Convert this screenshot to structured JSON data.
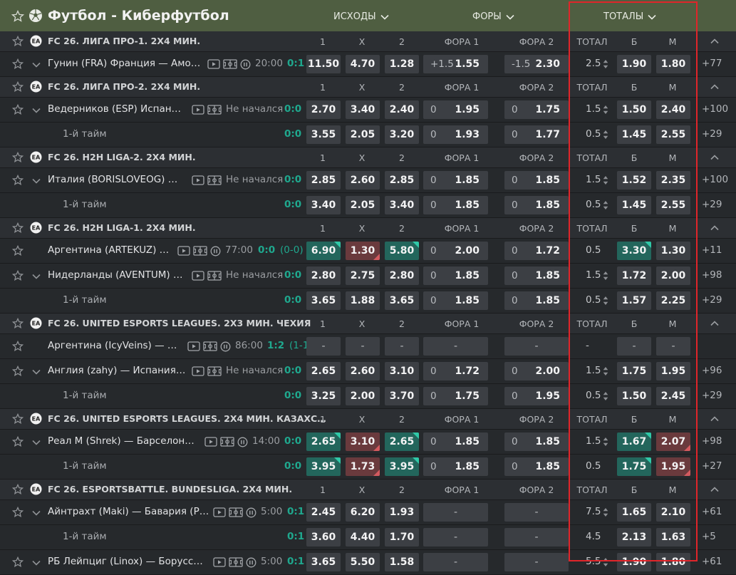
{
  "header": {
    "title": "Футбол - Киберфутбол",
    "tabs": [
      "ИСХОДЫ",
      "ФОРЫ",
      "ТОТАЛЫ"
    ]
  },
  "colors": {
    "accent": "#4f5e41",
    "score": "#1fa88e",
    "up": "#23665c",
    "down": "#6a3a3d",
    "highlight_box": "#e0252a"
  },
  "leagues": [
    {
      "name": "FC 26. ЛИГА ПРО-1. 2X4 МИН.",
      "cols": [
        "1",
        "X",
        "2",
        "ФОРА 1",
        "ФОРА 2",
        "ТОТАЛ",
        "Б",
        "М"
      ],
      "rows": [
        {
          "type": "match",
          "chev": true,
          "name": "Гунин (FRA) Франция — Амо…",
          "name_w": 218,
          "icons": [
            "video",
            "field",
            "pause"
          ],
          "status": "20:00",
          "score": "0:1",
          "score_x": 403,
          "o1": {
            "v": "11.50"
          },
          "ox": {
            "v": "4.70"
          },
          "o2": {
            "v": "1.28"
          },
          "f1": {
            "h": "+1.5",
            "v": "1.55"
          },
          "f2": {
            "h": "-1.5",
            "v": "2.30"
          },
          "total": "2.5",
          "tb": {
            "v": "1.90"
          },
          "tm": {
            "v": "1.80"
          },
          "arrows": true,
          "more": "+77"
        }
      ]
    },
    {
      "name": "FC 26. ЛИГА ПРО-2. 2X4 МИН.",
      "cols": [
        "1",
        "X",
        "2",
        "ФОРА 1",
        "ФОРА 2",
        "ТОТАЛ",
        "Б",
        "М"
      ],
      "rows": [
        {
          "type": "match",
          "chev": true,
          "name": "Ведерников (ESP) Испан…",
          "name_w": 196,
          "icons": [
            "video",
            "field"
          ],
          "status": "Не начался",
          "score": "0:0",
          "score_x": 399,
          "o1": {
            "v": "2.70"
          },
          "ox": {
            "v": "3.40"
          },
          "o2": {
            "v": "2.40"
          },
          "f1": {
            "h": "0",
            "v": "1.95"
          },
          "f2": {
            "h": "0",
            "v": "1.75"
          },
          "total": "1.5",
          "tb": {
            "v": "1.50"
          },
          "tm": {
            "v": "2.40"
          },
          "arrows": true,
          "more": "+100"
        },
        {
          "type": "half",
          "name": "1-й тайм",
          "score": "0:0",
          "score_x": 399,
          "o1": {
            "v": "3.55"
          },
          "ox": {
            "v": "2.05"
          },
          "o2": {
            "v": "3.20"
          },
          "f1": {
            "h": "0",
            "v": "1.93"
          },
          "f2": {
            "h": "0",
            "v": "1.77"
          },
          "total": "0.5",
          "tb": {
            "v": "1.45"
          },
          "tm": {
            "v": "2.55"
          },
          "arrows": true,
          "more": "+29"
        }
      ]
    },
    {
      "name": "FC 26. H2H LIGA-2. 2X4 МИН.",
      "cols": [
        "1",
        "X",
        "2",
        "ФОРА 1",
        "ФОРА 2",
        "ТОТАЛ",
        "Б",
        "М"
      ],
      "rows": [
        {
          "type": "match",
          "chev": true,
          "name": "Италия (BORISLOVEOG) …",
          "name_w": 196,
          "icons": [
            "video",
            "field"
          ],
          "status": "Не начался",
          "score": "0:0",
          "score_x": 399,
          "o1": {
            "v": "2.85"
          },
          "ox": {
            "v": "2.60"
          },
          "o2": {
            "v": "2.85"
          },
          "f1": {
            "h": "0",
            "v": "1.85"
          },
          "f2": {
            "h": "0",
            "v": "1.85"
          },
          "total": "1.5",
          "tb": {
            "v": "1.52"
          },
          "tm": {
            "v": "2.35"
          },
          "arrows": true,
          "more": "+100"
        },
        {
          "type": "half",
          "name": "1-й тайм",
          "score": "0:0",
          "score_x": 399,
          "o1": {
            "v": "3.40"
          },
          "ox": {
            "v": "2.05"
          },
          "o2": {
            "v": "3.40"
          },
          "f1": {
            "h": "0",
            "v": "1.85"
          },
          "f2": {
            "h": "0",
            "v": "1.85"
          },
          "total": "0.5",
          "tb": {
            "v": "1.45"
          },
          "tm": {
            "v": "2.55"
          },
          "arrows": true,
          "more": "+29"
        }
      ]
    },
    {
      "name": "FC 26. H2H LIGA-1. 2X4 МИН.",
      "cols": [
        "1",
        "X",
        "2",
        "ФОРА 1",
        "ФОРА 2",
        "ТОТАЛ",
        "Б",
        "М"
      ],
      "rows": [
        {
          "type": "match",
          "chev": false,
          "name": "Аргентина (ARTEKUZ) …",
          "name_w": 176,
          "icons": [
            "video",
            "field",
            "pause"
          ],
          "status": "77:00",
          "score": "0:0",
          "score_x": 362,
          "score_extra": "(0-0)",
          "o1": {
            "v": "6.90",
            "t": "up"
          },
          "ox": {
            "v": "1.30",
            "t": "down"
          },
          "o2": {
            "v": "5.80",
            "t": "up"
          },
          "f1": {
            "h": "0",
            "v": "2.00"
          },
          "f2": {
            "h": "0",
            "v": "1.72"
          },
          "total": "0.5",
          "tb": {
            "v": "3.30",
            "t": "up"
          },
          "tm": {
            "v": "1.30"
          },
          "arrows": false,
          "more": "+11"
        },
        {
          "type": "match",
          "chev": true,
          "name": "Нидерланды (AVENTUM) …",
          "name_w": 196,
          "icons": [
            "video",
            "field"
          ],
          "status": "Не начался",
          "score": "0:0",
          "score_x": 399,
          "o1": {
            "v": "2.80"
          },
          "ox": {
            "v": "2.75"
          },
          "o2": {
            "v": "2.80"
          },
          "f1": {
            "h": "0",
            "v": "1.85"
          },
          "f2": {
            "h": "0",
            "v": "1.85"
          },
          "total": "1.5",
          "tb": {
            "v": "1.72"
          },
          "tm": {
            "v": "2.00"
          },
          "arrows": true,
          "more": "+98"
        },
        {
          "type": "half",
          "name": "1-й тайм",
          "score": "0:0",
          "score_x": 399,
          "o1": {
            "v": "3.65"
          },
          "ox": {
            "v": "1.88"
          },
          "o2": {
            "v": "3.65"
          },
          "f1": {
            "h": "0",
            "v": "1.85"
          },
          "f2": {
            "h": "0",
            "v": "1.85"
          },
          "total": "0.5",
          "tb": {
            "v": "1.57"
          },
          "tm": {
            "v": "2.25"
          },
          "arrows": true,
          "more": "+29"
        }
      ]
    },
    {
      "name": "FC 26. UNITED ESPORTS LEAGUES. 2X3 МИН. ЧЕХИЯ",
      "cols": [
        "1",
        "X",
        "2",
        "ФОРА 1",
        "ФОРА 2",
        "ТОТАЛ",
        "Б",
        "М"
      ],
      "rows": [
        {
          "type": "match",
          "chev": false,
          "name": "Аргентина (IcyVeins) — …",
          "name_w": 190,
          "icons": [
            "video",
            "field",
            "pause"
          ],
          "status": "86:00",
          "score": "1:2",
          "score_x": 375,
          "score_extra": "(1-1)",
          "o1": {
            "v": "-",
            "t": "dash"
          },
          "ox": {
            "v": "-",
            "t": "dash"
          },
          "o2": {
            "v": "-",
            "t": "dash"
          },
          "f1": {
            "dash": true,
            "v": "-"
          },
          "f2": {
            "dash": true,
            "v": "-"
          },
          "total": "-",
          "tb": {
            "v": "-",
            "t": "dash"
          },
          "tm": {
            "v": "-",
            "t": "dash"
          },
          "arrows": false,
          "more": ""
        },
        {
          "type": "match",
          "chev": true,
          "name": "Англия (zahy) — Испания…",
          "name_w": 196,
          "icons": [
            "video",
            "field"
          ],
          "status": "Не начался",
          "score": "0:0",
          "score_x": 399,
          "o1": {
            "v": "2.65"
          },
          "ox": {
            "v": "2.60"
          },
          "o2": {
            "v": "3.10"
          },
          "f1": {
            "h": "0",
            "v": "1.72"
          },
          "f2": {
            "h": "0",
            "v": "2.00"
          },
          "total": "1.5",
          "tb": {
            "v": "1.75"
          },
          "tm": {
            "v": "1.95"
          },
          "arrows": true,
          "more": "+96"
        },
        {
          "type": "half",
          "name": "1-й тайм",
          "score": "0:0",
          "score_x": 399,
          "o1": {
            "v": "3.25"
          },
          "ox": {
            "v": "2.00"
          },
          "o2": {
            "v": "3.70"
          },
          "f1": {
            "h": "0",
            "v": "1.75"
          },
          "f2": {
            "h": "0",
            "v": "1.95"
          },
          "total": "0.5",
          "tb": {
            "v": "1.50"
          },
          "tm": {
            "v": "2.45"
          },
          "arrows": true,
          "more": "+29"
        }
      ]
    },
    {
      "name": "FC 26. UNITED ESPORTS LEAGUES. 2X4 МИН. КАЗАХС…",
      "cols": [
        "1",
        "X",
        "2",
        "ФОРА 1",
        "ФОРА 2",
        "ТОТАЛ",
        "Б",
        "М"
      ],
      "rows": [
        {
          "type": "match",
          "chev": true,
          "name": "Реал М (Shrek) — Барселон…",
          "name_w": 214,
          "icons": [
            "video",
            "field",
            "pause"
          ],
          "status": "14:00",
          "score": "0:0",
          "score_x": 399,
          "o1": {
            "v": "2.65",
            "t": "up"
          },
          "ox": {
            "v": "3.10",
            "t": "down"
          },
          "o2": {
            "v": "2.65",
            "t": "up"
          },
          "f1": {
            "h": "0",
            "v": "1.85"
          },
          "f2": {
            "h": "0",
            "v": "1.85"
          },
          "total": "1.5",
          "tb": {
            "v": "1.67",
            "t": "up"
          },
          "tm": {
            "v": "2.07",
            "t": "down"
          },
          "arrows": true,
          "more": "+98"
        },
        {
          "type": "half",
          "name": "1-й тайм",
          "score": "0:0",
          "score_x": 399,
          "o1": {
            "v": "3.95",
            "t": "up"
          },
          "ox": {
            "v": "1.73",
            "t": "down"
          },
          "o2": {
            "v": "3.95",
            "t": "up"
          },
          "f1": {
            "h": "0",
            "v": "1.85"
          },
          "f2": {
            "h": "0",
            "v": "1.85"
          },
          "total": "0.5",
          "tb": {
            "v": "1.75",
            "t": "up"
          },
          "tm": {
            "v": "1.95",
            "t": "down"
          },
          "arrows": false,
          "more": "+27"
        }
      ]
    },
    {
      "name": "FC 26. ESPORTSBATTLE. BUNDESLIGA. 2X4 МИН.",
      "cols": [
        "1",
        "X",
        "2",
        "ФОРА 1",
        "ФОРА 2",
        "ТОТАЛ",
        "Б",
        "М"
      ],
      "rows": [
        {
          "type": "match",
          "chev": true,
          "name": "Айнтрахт (Maki) — Бавария (Р…",
          "name_w": 226,
          "icons": [
            "video",
            "field",
            "pause"
          ],
          "status": "5:00",
          "score": "0:1",
          "score_x": 403,
          "o1": {
            "v": "2.45"
          },
          "ox": {
            "v": "6.20"
          },
          "o2": {
            "v": "1.93"
          },
          "f1": {
            "dash": true,
            "v": "-"
          },
          "f2": {
            "dash": true,
            "v": "-"
          },
          "total": "7.5",
          "tb": {
            "v": "1.65"
          },
          "tm": {
            "v": "2.10"
          },
          "arrows": true,
          "more": "+61"
        },
        {
          "type": "half",
          "name": "1-й тайм",
          "score": "0:1",
          "score_x": 403,
          "o1": {
            "v": "3.60"
          },
          "ox": {
            "v": "4.40"
          },
          "o2": {
            "v": "1.70"
          },
          "f1": {
            "dash": true,
            "v": "-"
          },
          "f2": {
            "dash": true,
            "v": "-"
          },
          "total": "4.5",
          "tb": {
            "v": "2.13"
          },
          "tm": {
            "v": "1.63"
          },
          "arrows": false,
          "more": "+5"
        },
        {
          "type": "match",
          "chev": true,
          "name": "РБ Лейпциг (Linox) — Борусс…",
          "name_w": 226,
          "icons": [
            "video",
            "field",
            "pause"
          ],
          "status": "5:00",
          "score": "0:1",
          "score_x": 403,
          "o1": {
            "v": "3.65"
          },
          "ox": {
            "v": "5.50"
          },
          "o2": {
            "v": "1.58"
          },
          "f1": {
            "dash": true,
            "v": "-"
          },
          "f2": {
            "dash": true,
            "v": "-"
          },
          "total": "5.5",
          "tb": {
            "v": "1.90"
          },
          "tm": {
            "v": "1.80"
          },
          "arrows": true,
          "more": "+61"
        }
      ]
    }
  ]
}
